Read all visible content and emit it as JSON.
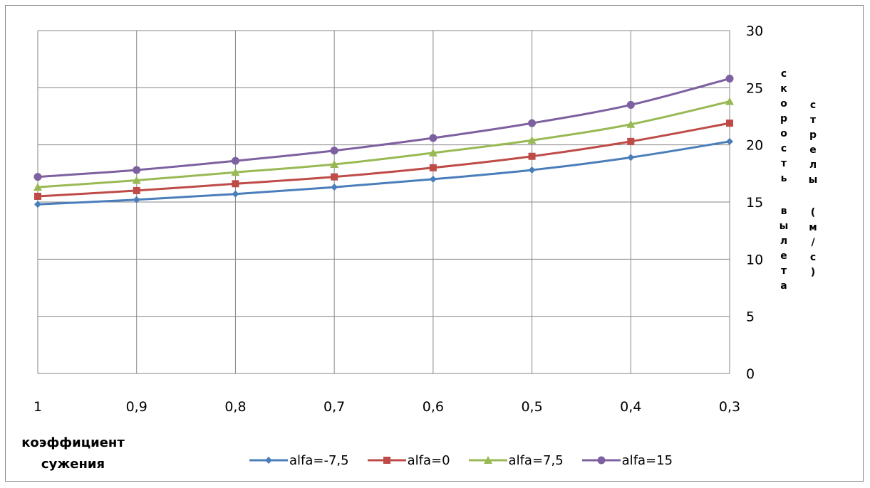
{
  "chart_data": {
    "type": "line",
    "x": [
      "1",
      "0,9",
      "0,8",
      "0,7",
      "0,6",
      "0,5",
      "0,4",
      "0,3"
    ],
    "xlabel": "коэффициент сужения",
    "ylabel_left": "скорость вылета",
    "ylabel_right": "стрелы (м/с)",
    "ylim": [
      0,
      30
    ],
    "yticks": [
      0,
      5,
      10,
      15,
      20,
      25,
      30
    ],
    "grid": true,
    "legend_position": "bottom",
    "series": [
      {
        "name": "alfa=-7,5",
        "color": "#4a7ebb",
        "marker": "diamond",
        "values": [
          14.8,
          15.2,
          15.7,
          16.3,
          17.0,
          17.8,
          18.9,
          20.3
        ]
      },
      {
        "name": "alfa=0",
        "color": "#be4b48",
        "marker": "square",
        "values": [
          15.5,
          16.0,
          16.6,
          17.2,
          18.0,
          19.0,
          20.3,
          21.9
        ]
      },
      {
        "name": "alfa=7,5",
        "color": "#98b954",
        "marker": "triangle",
        "values": [
          16.3,
          16.9,
          17.6,
          18.3,
          19.3,
          20.4,
          21.8,
          23.8
        ]
      },
      {
        "name": "alfa=15",
        "color": "#7d60a0",
        "marker": "circle",
        "values": [
          17.2,
          17.8,
          18.6,
          19.5,
          20.6,
          21.9,
          23.5,
          25.8
        ]
      }
    ]
  }
}
